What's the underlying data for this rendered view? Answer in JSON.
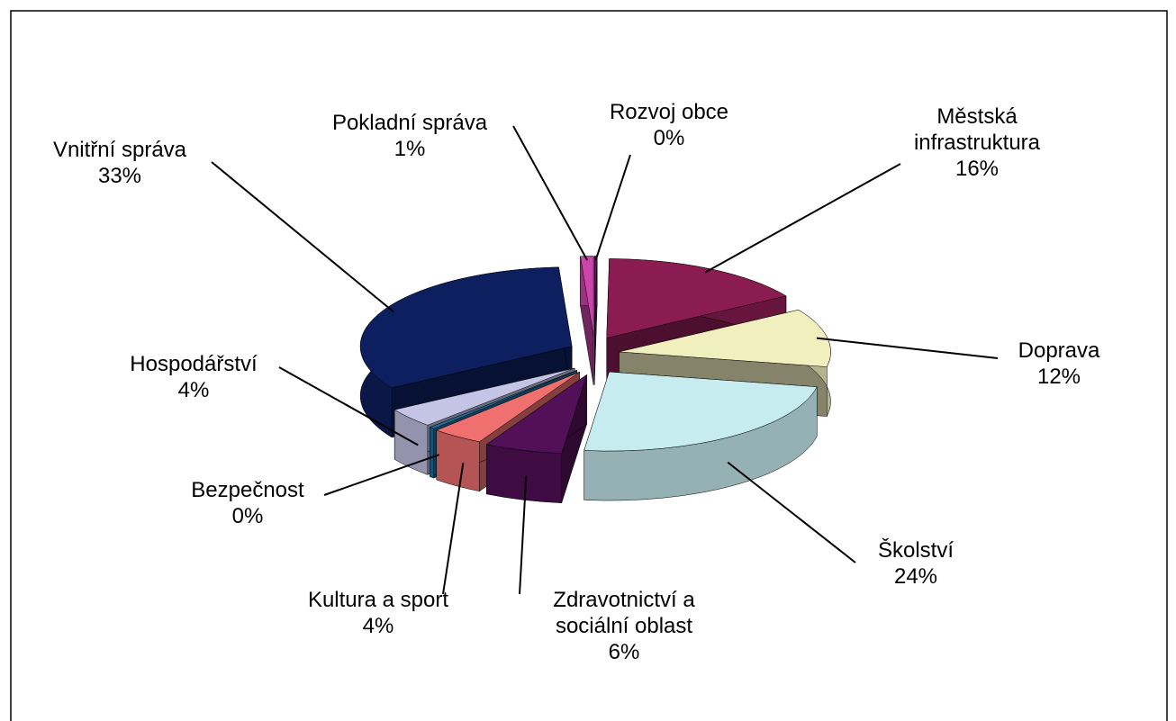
{
  "chart_data": {
    "type": "pie3d",
    "categories": [
      "Rozvoj obce",
      "Městská infrastruktura",
      "Doprava",
      "Školství",
      "Zdravotnictví  a sociální oblast",
      "Kultura a sport",
      "Bezpečnost",
      "Hospodářství",
      "Vnitřní správa",
      "Pokladní správa"
    ],
    "values": [
      0.2,
      16,
      12,
      24,
      6,
      4,
      0.4,
      4,
      33,
      1
    ],
    "value_labels": [
      "0%",
      "16%",
      "12%",
      "24%",
      "6%",
      "4%",
      "0%",
      "4%",
      "33%",
      "1%"
    ],
    "colors": [
      "#5a1a5a",
      "#8b1c52",
      "#f2efbf",
      "#c6ecef",
      "#521058",
      "#f07070",
      "#1f6fa0",
      "#c4c4e6",
      "#0d1f5e",
      "#cc44aa"
    ]
  }
}
